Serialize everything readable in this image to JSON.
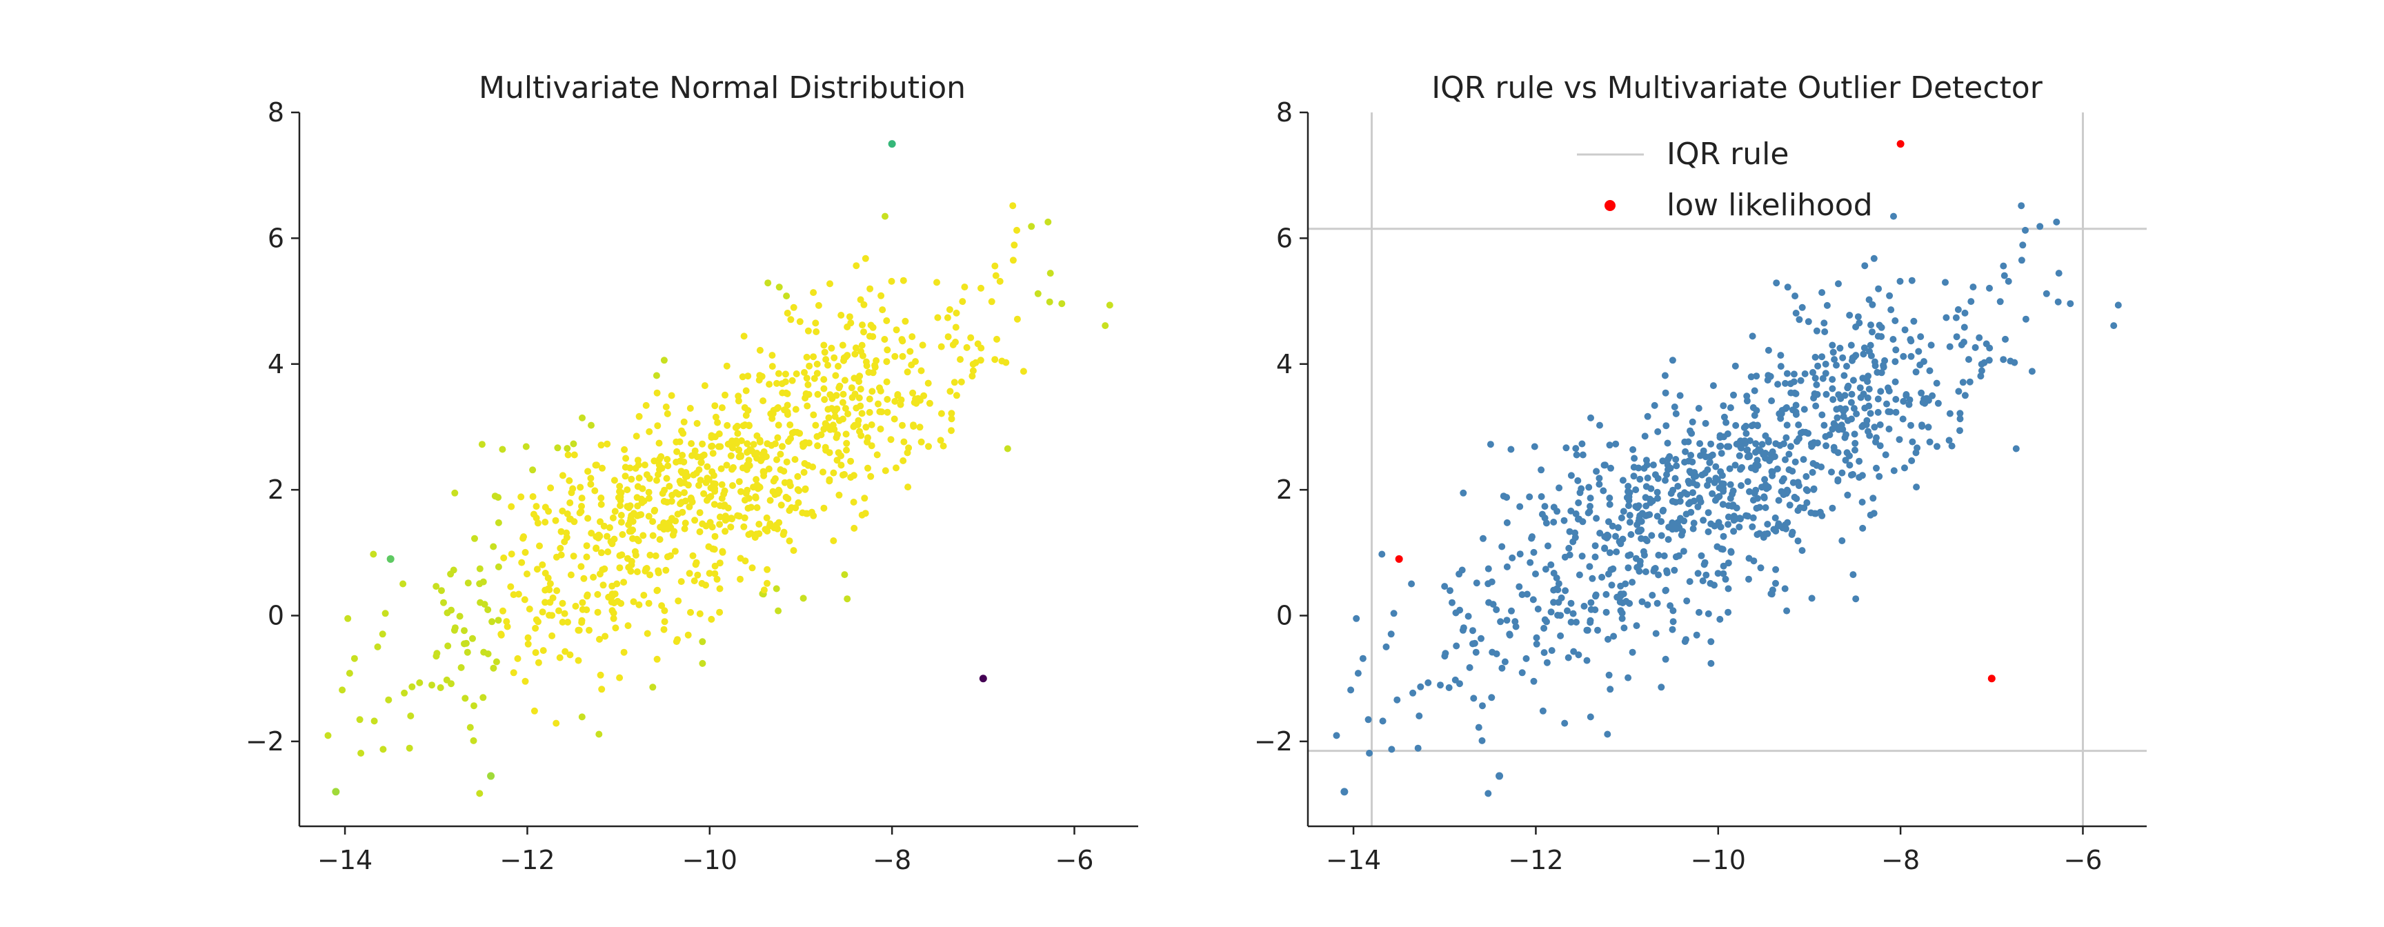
{
  "chart_data": [
    {
      "type": "scatter",
      "title": "Multivariate Normal Distribution",
      "xlabel": "",
      "ylabel": "",
      "xlim": [
        -14.5,
        -5.3
      ],
      "ylim": [
        -3.35,
        8.0
      ],
      "x_ticks": [
        -14,
        -12,
        -10,
        -8,
        -6
      ],
      "y_ticks": [
        -2,
        0,
        2,
        4,
        6,
        8
      ],
      "x_tick_labels": [
        "−14",
        "−12",
        "−10",
        "−8",
        "−6"
      ],
      "y_tick_labels": [
        "−2",
        "0",
        "2",
        "4",
        "6",
        "8"
      ],
      "grid": false,
      "color_scale": "viridis (by likelihood)",
      "bulk_points": {
        "count": 1000,
        "mean": [
          -10,
          2
        ],
        "sd": [
          1.5,
          1.5
        ],
        "correlation": 0.78,
        "color": "#f2e51d"
      },
      "highlighted_points": [
        {
          "x": -8.0,
          "y": 7.5,
          "color": "#35b779"
        },
        {
          "x": -13.5,
          "y": 0.9,
          "color": "#5ec962"
        },
        {
          "x": -7.0,
          "y": -1.0,
          "color": "#440154"
        },
        {
          "x": -14.1,
          "y": -2.8,
          "color": "#a0da39"
        },
        {
          "x": -12.4,
          "y": -2.55,
          "color": "#a0da39"
        }
      ]
    },
    {
      "type": "scatter",
      "title": "IQR rule vs Multivariate Outlier Detector",
      "xlabel": "",
      "ylabel": "",
      "xlim": [
        -14.5,
        -5.3
      ],
      "ylim": [
        -3.35,
        8.0
      ],
      "x_ticks": [
        -14,
        -12,
        -10,
        -8,
        -6
      ],
      "y_ticks": [
        -2,
        0,
        2,
        4,
        6,
        8
      ],
      "x_tick_labels": [
        "−14",
        "−12",
        "−10",
        "−8",
        "−6"
      ],
      "y_tick_labels": [
        "−2",
        "0",
        "2",
        "4",
        "6",
        "8"
      ],
      "grid": false,
      "legend": {
        "placement": "upper center",
        "entries": [
          {
            "label": "IQR rule",
            "kind": "line",
            "color": "#cccccc"
          },
          {
            "label": "low likelihood",
            "kind": "marker",
            "color": "#ff0000"
          }
        ]
      },
      "point_color": "#4682b4",
      "iqr_lines": {
        "vertical_x": [
          -13.8,
          -6.0
        ],
        "horizontal_y": [
          -2.15,
          6.15
        ],
        "color": "#cccccc"
      },
      "low_likelihood_points": [
        {
          "x": -8.0,
          "y": 7.5
        },
        {
          "x": -13.5,
          "y": 0.9
        },
        {
          "x": -7.0,
          "y": -1.0
        }
      ],
      "highlighted_points": [
        {
          "x": -14.1,
          "y": -2.8
        },
        {
          "x": -12.4,
          "y": -2.55
        }
      ]
    }
  ]
}
